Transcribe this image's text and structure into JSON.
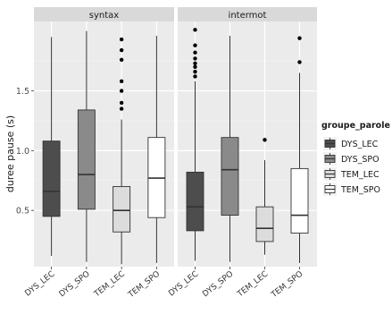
{
  "chart_data": {
    "type": "boxplot",
    "ylabel": "duree pause (s)",
    "xlabel": "",
    "ylim": [
      0.03,
      2.08
    ],
    "yticks": [
      0.5,
      1.0,
      1.5
    ],
    "grid": true,
    "categories": [
      "DYS_LEC",
      "DYS_SPO",
      "TEM_LEC",
      "TEM_SPO"
    ],
    "facets": [
      {
        "label": "syntax",
        "boxes": [
          {
            "category": "DYS_LEC",
            "min": 0.12,
            "q1": 0.45,
            "median": 0.66,
            "q3": 1.08,
            "max": 1.95,
            "outliers": []
          },
          {
            "category": "DYS_SPO",
            "min": 0.07,
            "q1": 0.51,
            "median": 0.8,
            "q3": 1.34,
            "max": 2.0,
            "outliers": []
          },
          {
            "category": "TEM_LEC",
            "min": 0.05,
            "q1": 0.32,
            "median": 0.5,
            "q3": 0.7,
            "max": 1.26,
            "outliers": [
              1.35,
              1.4,
              1.5,
              1.58,
              1.76,
              1.84,
              1.93
            ]
          },
          {
            "category": "TEM_SPO",
            "min": 0.06,
            "q1": 0.44,
            "median": 0.77,
            "q3": 1.11,
            "max": 1.96,
            "outliers": []
          }
        ]
      },
      {
        "label": "intermot",
        "boxes": [
          {
            "category": "DYS_LEC",
            "min": 0.08,
            "q1": 0.33,
            "median": 0.53,
            "q3": 0.82,
            "max": 1.58,
            "outliers": [
              1.62,
              1.66,
              1.7,
              1.73,
              1.77,
              1.82,
              1.88,
              2.01
            ]
          },
          {
            "category": "DYS_SPO",
            "min": 0.07,
            "q1": 0.46,
            "median": 0.84,
            "q3": 1.11,
            "max": 1.96,
            "outliers": []
          },
          {
            "category": "TEM_LEC",
            "min": 0.13,
            "q1": 0.24,
            "median": 0.35,
            "q3": 0.53,
            "max": 0.92,
            "outliers": [
              1.09
            ]
          },
          {
            "category": "TEM_SPO",
            "min": 0.06,
            "q1": 0.31,
            "median": 0.46,
            "q3": 0.85,
            "max": 1.65,
            "outliers": [
              1.74,
              1.94
            ]
          }
        ]
      }
    ],
    "legend": {
      "title": "groupe_parole",
      "position": "right",
      "entries": [
        {
          "label": "DYS_LEC",
          "color": "#4d4d4d"
        },
        {
          "label": "DYS_SPO",
          "color": "#8a8a8a"
        },
        {
          "label": "TEM_LEC",
          "color": "#dcdcdc"
        },
        {
          "label": "TEM_SPO",
          "color": "#ffffff"
        }
      ]
    },
    "colors": {
      "panel_background": "#ebebeb",
      "grid_major": "#ffffff",
      "grid_minor": "#f5f5f5",
      "strip_background": "#d9d9d9",
      "box_outline": "#333333",
      "outlier": "#000000"
    }
  }
}
